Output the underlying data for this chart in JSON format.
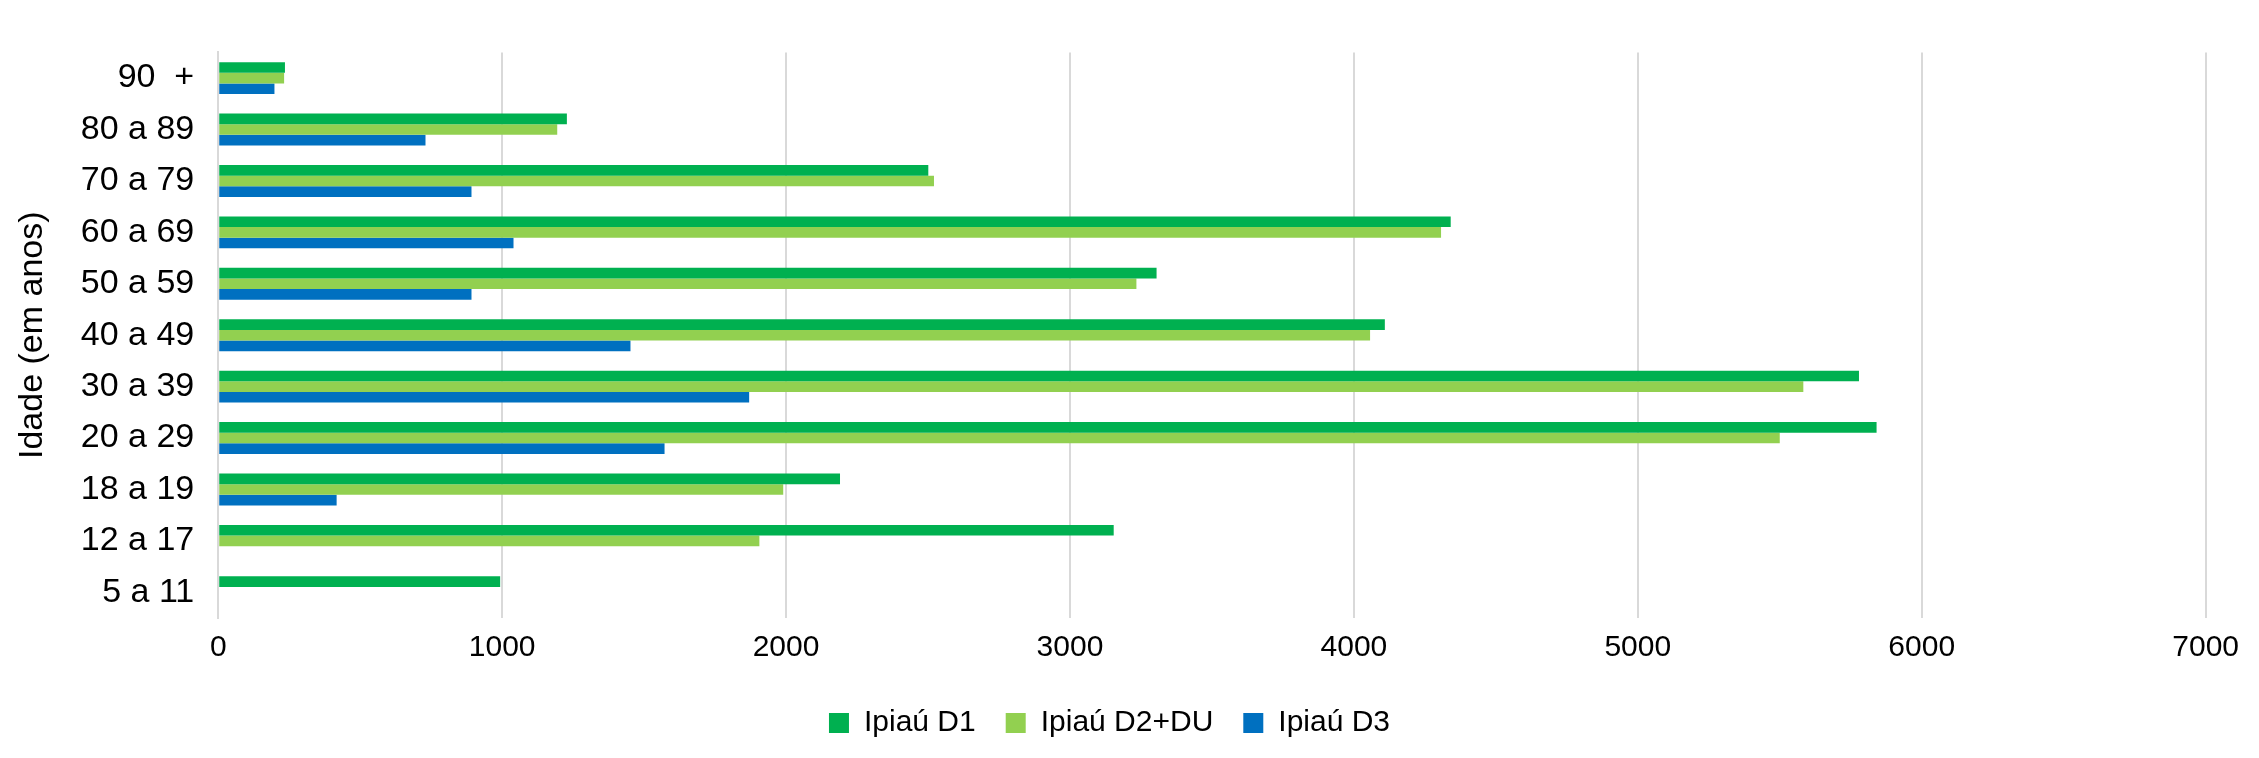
{
  "chart_data": {
    "type": "bar",
    "orientation": "horizontal",
    "ylabel": "Idade (em anos)",
    "categories": [
      "90  +",
      "80 a 89",
      "70 a 79",
      "60 a 69",
      "50 a 59",
      "40 a 49",
      "30 a 39",
      "20 a 29",
      "18 a 19",
      "12 a 17",
      "5 a 11"
    ],
    "series": [
      {
        "name": "Ipiaú D1",
        "color": "#00b050",
        "values": [
          235,
          1228,
          2501,
          4341,
          3305,
          4109,
          5779,
          5841,
          2190,
          3154,
          993
        ]
      },
      {
        "name": "Ipiaú D2+DU",
        "color": "#92d050",
        "values": [
          232,
          1194,
          2521,
          4307,
          3234,
          4057,
          5583,
          5500,
          1990,
          1906,
          null
        ]
      },
      {
        "name": "Ipiaú D3",
        "color": "#0070c0",
        "values": [
          198,
          730,
          892,
          1040,
          892,
          1452,
          1870,
          1572,
          417,
          null,
          null
        ]
      }
    ],
    "xlim": [
      0,
      7000
    ],
    "xticks": [
      0,
      1000,
      2000,
      3000,
      4000,
      5000,
      6000,
      7000
    ],
    "grid": "x",
    "legend": "bottom"
  }
}
